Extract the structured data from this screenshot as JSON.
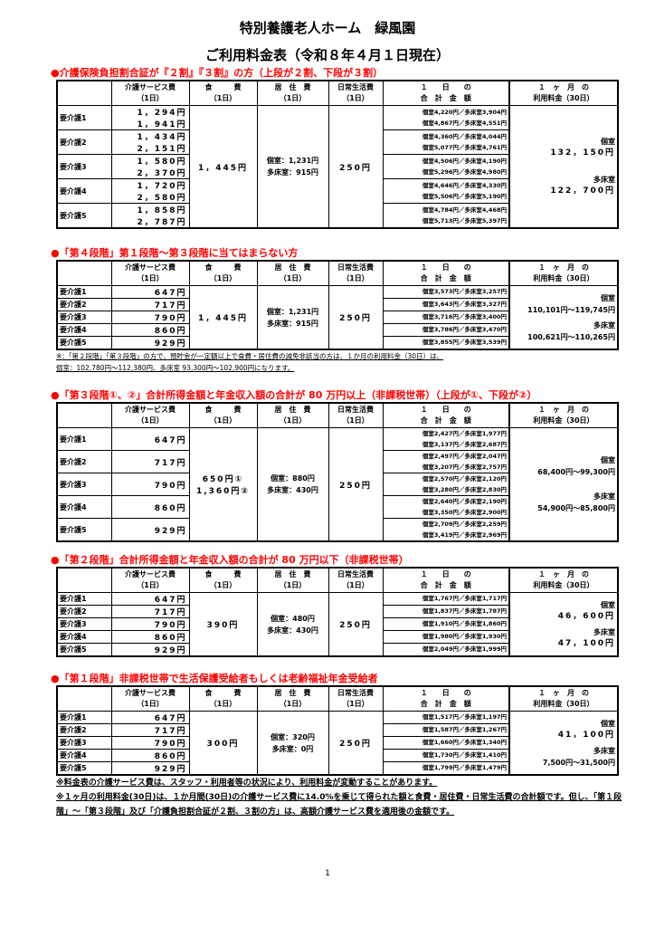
{
  "title": "特別養護老人ホーム　緑風園",
  "subtitle": "ご利用料金表（令和８年４月１日現在）",
  "header": {
    "service": [
      "介護サービス費",
      "（1日）"
    ],
    "food": [
      "食　　　費",
      "（1日）"
    ],
    "residence": [
      "居　住　費",
      "（1日）"
    ],
    "daily": [
      "日常生活費",
      "（1日）"
    ],
    "total": [
      "１　　日　　の",
      "合　計　金　額"
    ],
    "monthly": [
      "１　ヶ　月　の",
      "利用料金（30日）"
    ]
  },
  "sections": [
    {
      "heading": "●介護保険負担割合証が『２割』『３割』の方（上段が２割、下段が３割）",
      "rows": [
        {
          "level": "要介護1",
          "service": [
            "1，294円",
            "1，941円"
          ],
          "totals": [
            "個室4,220円／多床室3,904円",
            "個室4,867円／多床室4,551円"
          ]
        },
        {
          "level": "要介護2",
          "service": [
            "1，434円",
            "2，151円"
          ],
          "totals": [
            "個室4,360円／多床室4,044円",
            "個室5,077円／多床室4,761円"
          ]
        },
        {
          "level": "要介護3",
          "service": [
            "1，580円",
            "2，370円"
          ],
          "totals": [
            "個室4,506円／多床室4,190円",
            "個室5,296円／多床室4,980円"
          ]
        },
        {
          "level": "要介護4",
          "service": [
            "1，720円",
            "2，580円"
          ],
          "totals": [
            "個室4,646円／多床室4,330円",
            "個室5,506円／多床室5,190円"
          ]
        },
        {
          "level": "要介護5",
          "service": [
            "1，858円",
            "2，787円"
          ],
          "totals": [
            "個室4,784円／多床室4,468円",
            "個室5,713円／多床室5,397円"
          ]
        }
      ],
      "food": [
        "1，445円"
      ],
      "residence": [
        "個室：1,231円",
        "多床室：915円"
      ],
      "daily": "250円",
      "monthly": {
        "private_label": "個室",
        "private": "132，150円",
        "multi_label": "多床室",
        "multi": "122，700円"
      },
      "note": []
    },
    {
      "heading": "●「第４段階」第１段階～第３段階に当てはまらない方",
      "rows": [
        {
          "level": "要介護1",
          "service": [
            "647円"
          ],
          "totals": [
            "個室3,573円／多床室3,257円"
          ]
        },
        {
          "level": "要介護2",
          "service": [
            "717円"
          ],
          "totals": [
            "個室3,643円／多床室3,327円"
          ]
        },
        {
          "level": "要介護3",
          "service": [
            "790円"
          ],
          "totals": [
            "個室3,716円／多床室3,400円"
          ]
        },
        {
          "level": "要介護4",
          "service": [
            "860円"
          ],
          "totals": [
            "個室3,786円／多床室3,470円"
          ]
        },
        {
          "level": "要介護5",
          "service": [
            "929円"
          ],
          "totals": [
            "個室3,855円／多床室3,539円"
          ]
        }
      ],
      "food": [
        "1，445円"
      ],
      "residence": [
        "個室：1,231円",
        "多床室：915円"
      ],
      "daily": "250円",
      "monthly": {
        "private_label": "個室",
        "private": "110,101円～119,745円",
        "multi_label": "多床室",
        "multi": "100,621円～110,265円"
      },
      "note": [
        "※：「第２段階」「第３段階」の方で、預貯金が一定額以上で食費・居住費の減免非該当の方は、１か月の利用料金（30日）は、",
        "個室：102,780円～112,380円、多床室 93,300円～102,900円になります。"
      ]
    },
    {
      "heading": "●「第３段階①、②」合計所得金額と年金収入額の合計が 80 万円以上（非課税世帯）（上段が①、下段が②）",
      "rows": [
        {
          "level": "要介護1",
          "service": [
            "647円"
          ],
          "totals": [
            "個室2,427円／多床室1,977円",
            "個室3,137円／多床室2,687円"
          ]
        },
        {
          "level": "要介護2",
          "service": [
            "717円"
          ],
          "totals": [
            "個室2,497円／多床室2,047円",
            "個室3,207円／多床室2,757円"
          ]
        },
        {
          "level": "要介護3",
          "service": [
            "790円"
          ],
          "totals": [
            "個室2,570円／多床室2,120円",
            "個室3,280円／多床室2,830円"
          ]
        },
        {
          "level": "要介護4",
          "service": [
            "860円"
          ],
          "totals": [
            "個室2,640円／多床室2,190円",
            "個室3,350円／多床室2,900円"
          ]
        },
        {
          "level": "要介護5",
          "service": [
            "929円"
          ],
          "totals": [
            "個室2,709円／多床室2,259円",
            "個室3,419円／多床室2,969円"
          ]
        }
      ],
      "food": [
        "650円①",
        "1,360円②"
      ],
      "residence": [
        "個室：880円",
        "多床室：430円"
      ],
      "daily": "250円",
      "monthly": {
        "private_label": "個室",
        "private": "68,400円～99,300円",
        "multi_label": "多床室",
        "multi": "54,900円～85,800円"
      },
      "note": []
    },
    {
      "heading": "●「第２段階」合計所得金額と年金収入額の合計が 80 万円以下（非課税世帯）",
      "rows": [
        {
          "level": "要介護1",
          "service": [
            "647円"
          ],
          "totals": [
            "個室1,767円／多床室1,717円"
          ]
        },
        {
          "level": "要介護2",
          "service": [
            "717円"
          ],
          "totals": [
            "個室1,837円／多床室1,787円"
          ]
        },
        {
          "level": "要介護3",
          "service": [
            "790円"
          ],
          "totals": [
            "個室1,910円／多床室1,860円"
          ]
        },
        {
          "level": "要介護4",
          "service": [
            "860円"
          ],
          "totals": [
            "個室1,980円／多床室1,930円"
          ]
        },
        {
          "level": "要介護5",
          "service": [
            "929円"
          ],
          "totals": [
            "個室2,049円／多床室1,999円"
          ]
        }
      ],
      "food": [
        "390円"
      ],
      "residence": [
        "個室：480円",
        "多床室：430円"
      ],
      "daily": "250円",
      "monthly": {
        "private_label": "個室",
        "private": "46，600円",
        "multi_label": "多床室",
        "multi": "47，100円"
      },
      "note": []
    },
    {
      "heading": "●「第１段階」非課税世帯で生活保護受給者もしくは老齢福祉年金受給者",
      "rows": [
        {
          "level": "要介護1",
          "service": [
            "647円"
          ],
          "totals": [
            "個室1,517円／多床室1,197円"
          ]
        },
        {
          "level": "要介護2",
          "service": [
            "717円"
          ],
          "totals": [
            "個室1,587円／多床室1,267円"
          ]
        },
        {
          "level": "要介護3",
          "service": [
            "790円"
          ],
          "totals": [
            "個室1,660円／多床室1,340円"
          ]
        },
        {
          "level": "要介護4",
          "service": [
            "860円"
          ],
          "totals": [
            "個室1,730円／多床室1,410円"
          ]
        },
        {
          "level": "要介護5",
          "service": [
            "929円"
          ],
          "totals": [
            "個室1,799円／多床室1,479円"
          ]
        }
      ],
      "food": [
        "300円"
      ],
      "residence": [
        "個室：320円",
        "多床室：0円"
      ],
      "daily": "250円",
      "monthly": {
        "private_label": "個室",
        "private": "41，100円",
        "multi_label": "多床室",
        "multi": "7,500円～31,500円"
      },
      "note": []
    }
  ],
  "bottom_notes": [
    "※料金表の介護サービス費は、スタッフ・利用者等の状況により、利用料金が変動することがあります。",
    "※１ヶ月の利用料金(30日)は、１か月間(30日)の介護サービス費に14.0%を乗じて得られた額と食費・居住費・日常生活費の合計額です。但し、「第１段階」～「第３段階」及び「介護負担割合証が２割、３割の方」は、高額介護サービス費を適用後の金額です。"
  ],
  "page_number": "1"
}
